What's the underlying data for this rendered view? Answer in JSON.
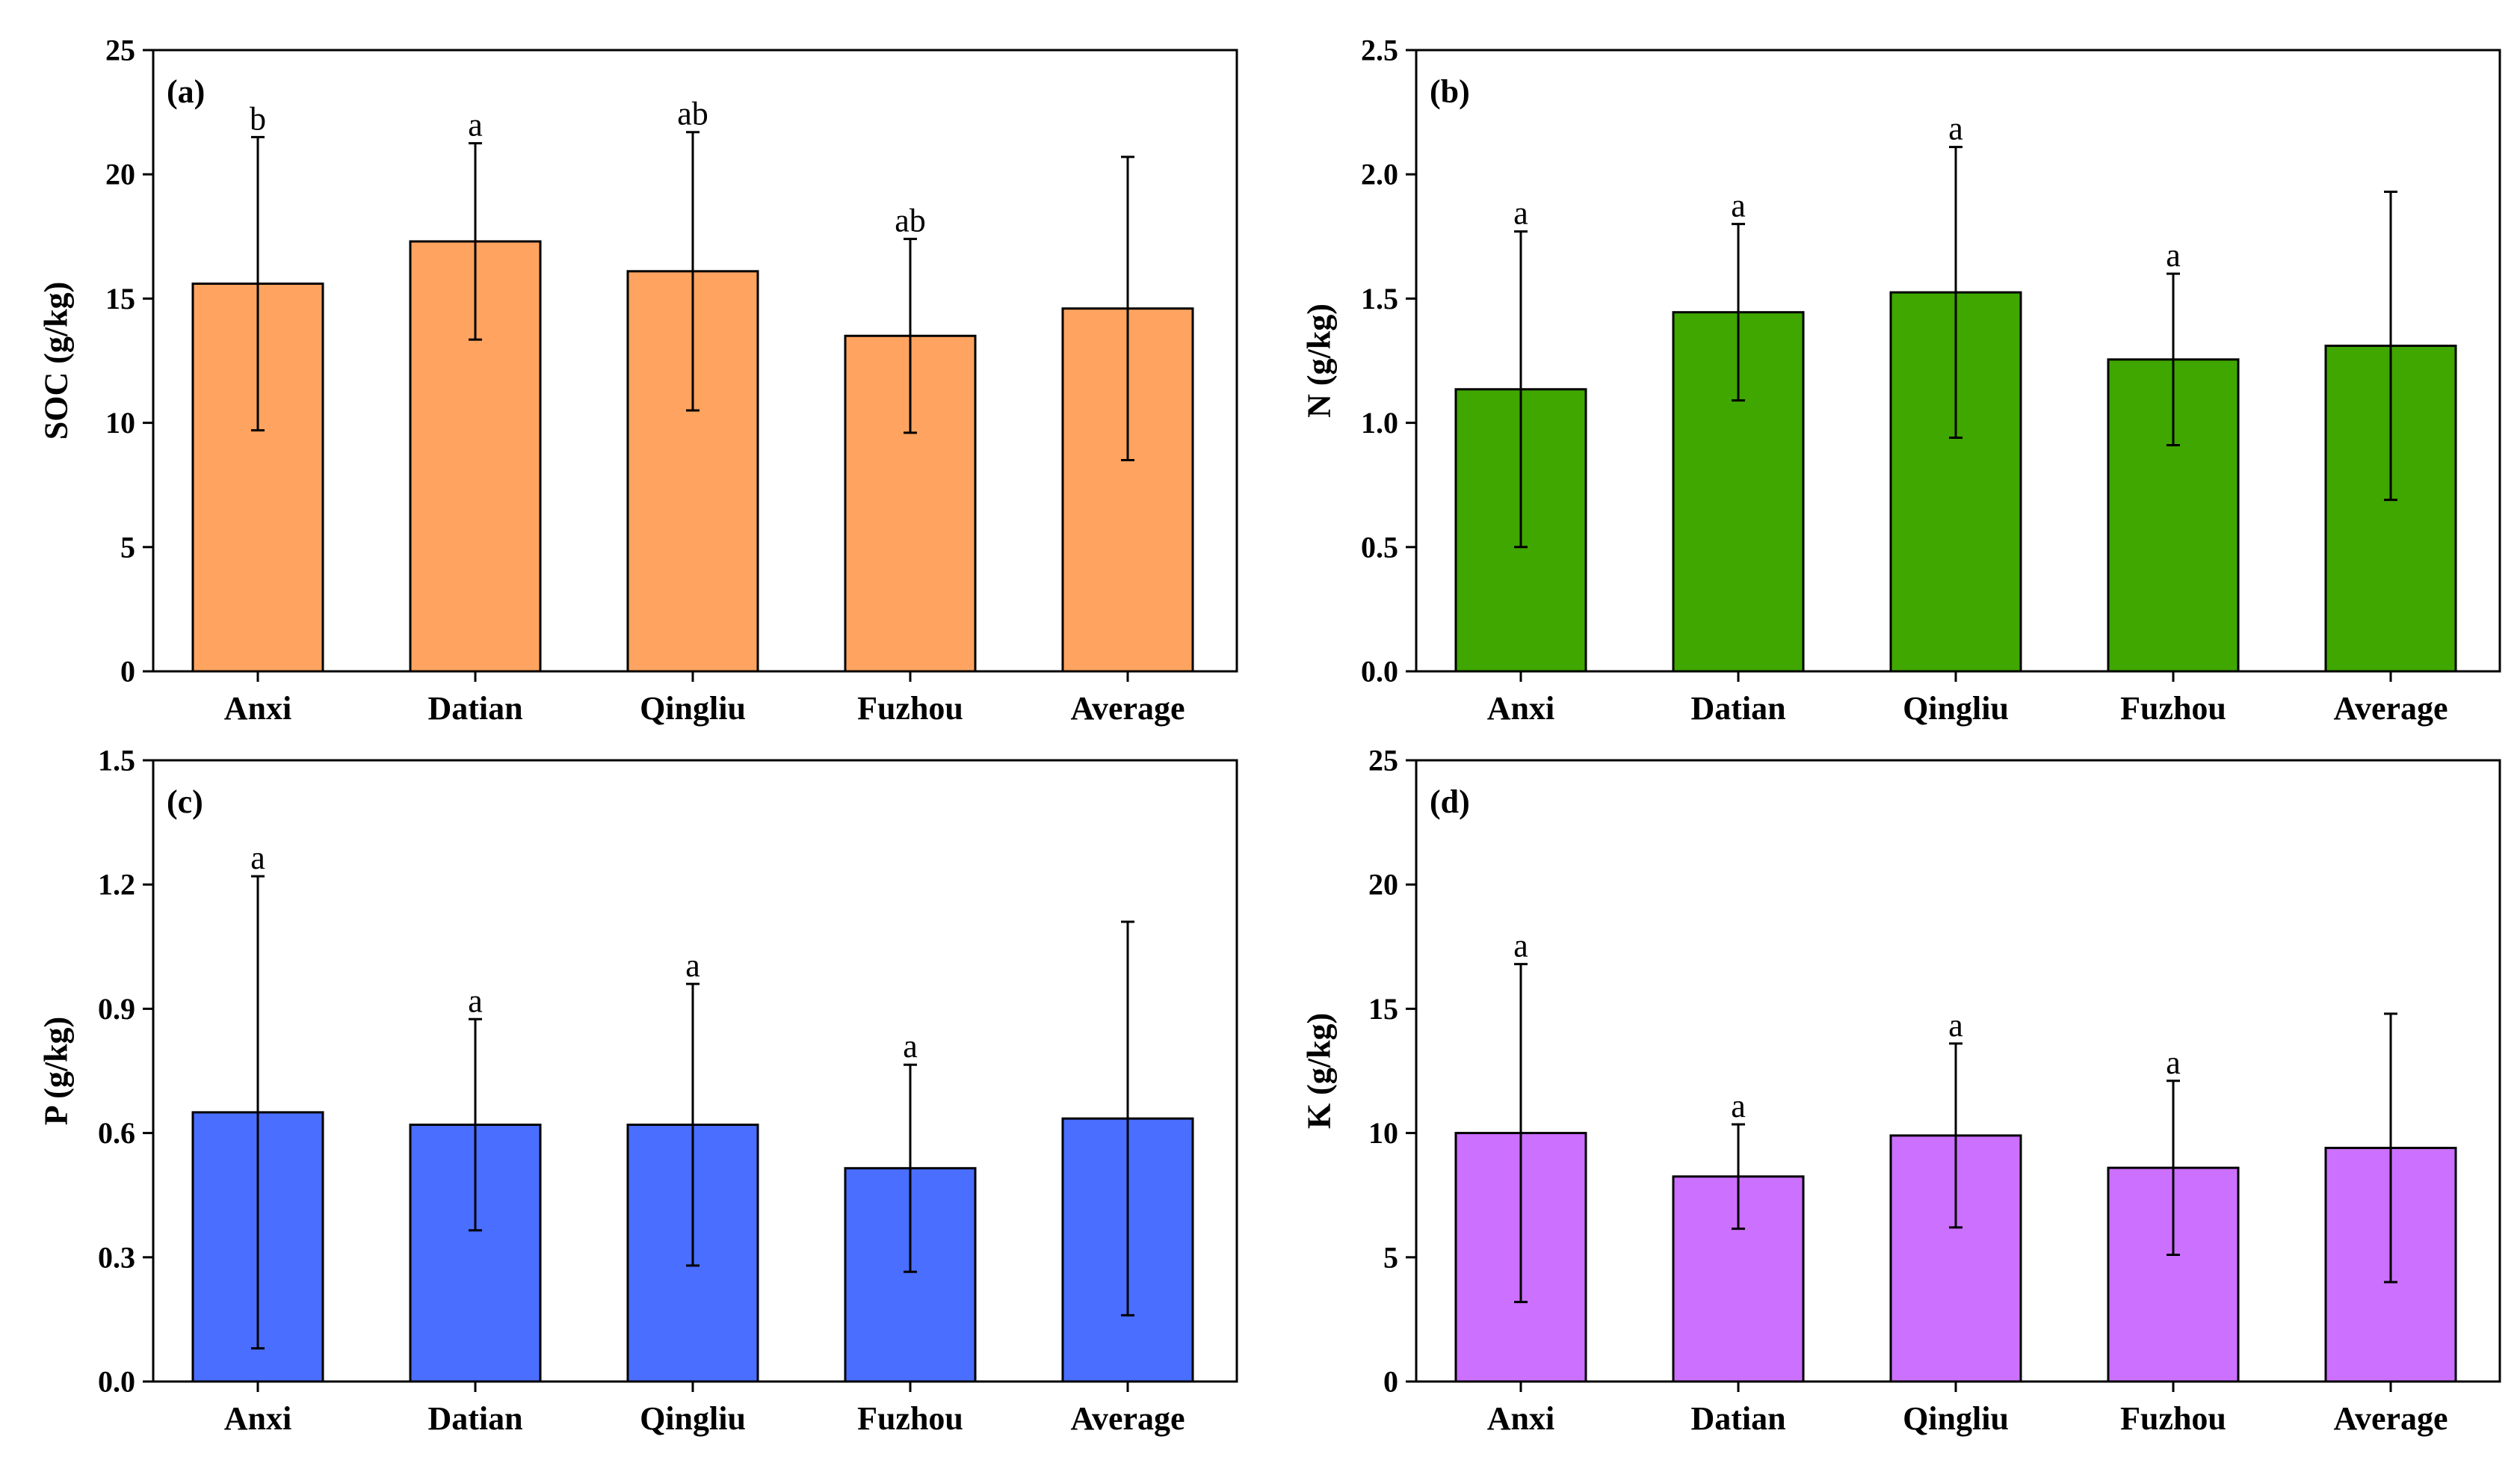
{
  "chart_data": [
    {
      "type": "bar",
      "panel": "(a)",
      "ylabel": "SOC (g/kg)",
      "xlabel": "",
      "categories": [
        "Anxi",
        "Datian",
        "Qingliu",
        "Fuzhou",
        "Average"
      ],
      "values": [
        15.6,
        17.3,
        16.1,
        13.5,
        14.6
      ],
      "errors": [
        5.9,
        3.95,
        5.6,
        3.9,
        6.1
      ],
      "significance": [
        "b",
        "a",
        "ab",
        "ab",
        ""
      ],
      "ylim": [
        0,
        25
      ],
      "yticks": [
        0,
        5,
        10,
        15,
        20,
        25
      ],
      "ytick_labels": [
        "0",
        "5",
        "10",
        "15",
        "20",
        "25"
      ],
      "color": "#FFA460"
    },
    {
      "type": "bar",
      "panel": "(b)",
      "ylabel": "N (g/kg)",
      "xlabel": "",
      "categories": [
        "Anxi",
        "Datian",
        "Qingliu",
        "Fuzhou",
        "Average"
      ],
      "values": [
        1.135,
        1.445,
        1.525,
        1.255,
        1.31
      ],
      "errors": [
        0.635,
        0.355,
        0.585,
        0.345,
        0.62
      ],
      "significance": [
        "a",
        "a",
        "a",
        "a",
        ""
      ],
      "ylim": [
        0,
        2.5
      ],
      "yticks": [
        0,
        0.5,
        1.0,
        1.5,
        2.0,
        2.5
      ],
      "ytick_labels": [
        "0.0",
        "0.5",
        "1.0",
        "1.5",
        "2.0",
        "2.5"
      ],
      "color": "#3FA700"
    },
    {
      "type": "bar",
      "panel": "(c)",
      "ylabel": "P (g/kg)",
      "xlabel": "",
      "categories": [
        "Anxi",
        "Datian",
        "Qingliu",
        "Fuzhou",
        "Average"
      ],
      "values": [
        0.65,
        0.62,
        0.62,
        0.515,
        0.635
      ],
      "errors": [
        0.57,
        0.255,
        0.34,
        0.25,
        0.475
      ],
      "significance": [
        "a",
        "a",
        "a",
        "a",
        ""
      ],
      "ylim": [
        0,
        1.5
      ],
      "yticks": [
        0,
        0.3,
        0.6,
        0.9,
        1.2,
        1.5
      ],
      "ytick_labels": [
        "0.0",
        "0.3",
        "0.6",
        "0.9",
        "1.2",
        "1.5"
      ],
      "color": "#4A6EFF"
    },
    {
      "type": "bar",
      "panel": "(d)",
      "ylabel": "K (g/kg)",
      "xlabel": "",
      "categories": [
        "Anxi",
        "Datian",
        "Qingliu",
        "Fuzhou",
        "Average"
      ],
      "values": [
        10.0,
        8.25,
        9.9,
        8.6,
        9.4
      ],
      "errors": [
        6.8,
        2.1,
        3.7,
        3.5,
        5.4
      ],
      "significance": [
        "a",
        "a",
        "a",
        "a",
        ""
      ],
      "ylim": [
        0,
        25
      ],
      "yticks": [
        0,
        5,
        10,
        15,
        20,
        25
      ],
      "ytick_labels": [
        "0",
        "5",
        "10",
        "15",
        "20",
        "25"
      ],
      "color": "#CC70FF"
    }
  ]
}
